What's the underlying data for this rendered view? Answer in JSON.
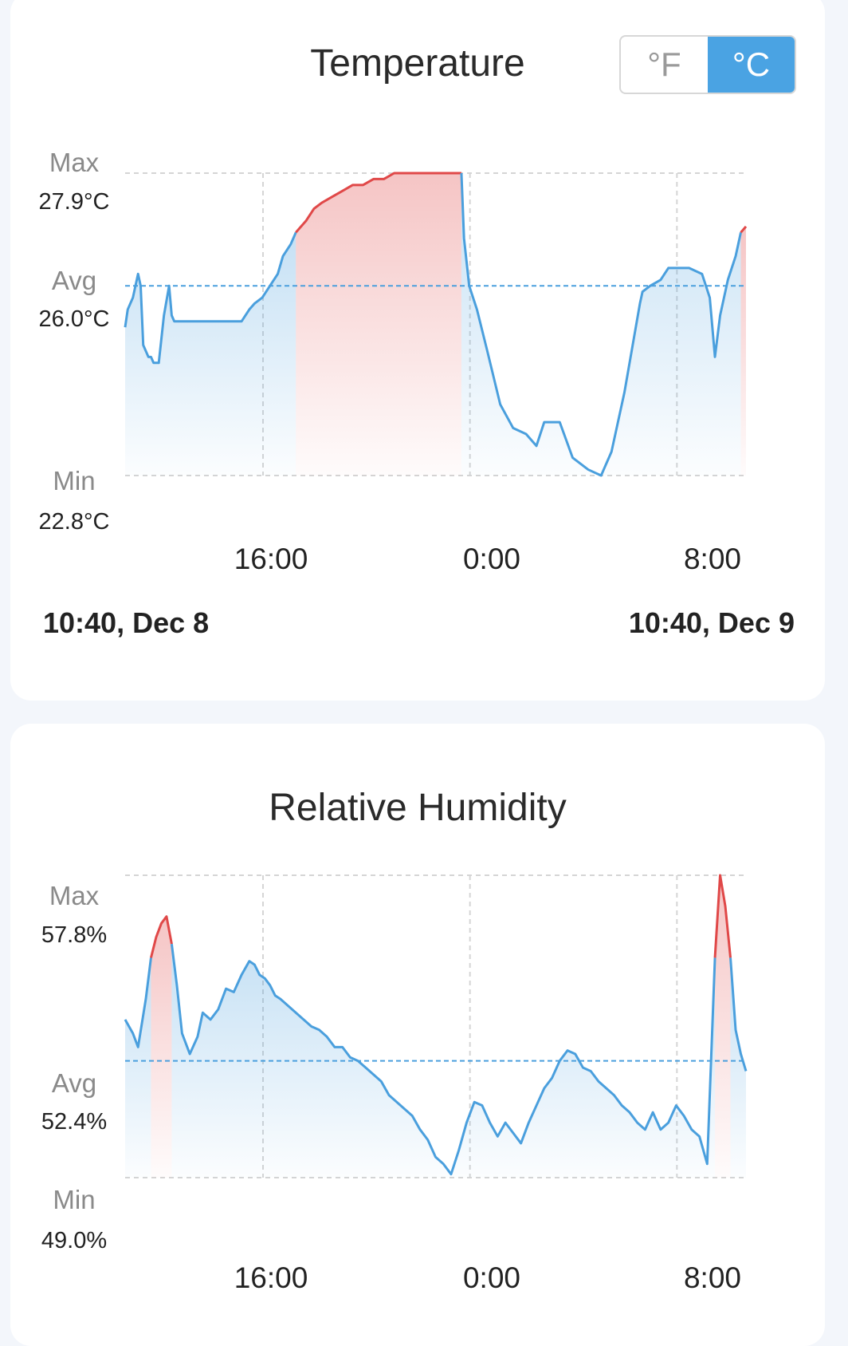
{
  "temperature": {
    "title": "Temperature",
    "units": [
      {
        "label": "°F",
        "active": false
      },
      {
        "label": "°C",
        "active": true
      }
    ],
    "max_label": "Max",
    "max_value": "27.9°C",
    "avg_label": "Avg",
    "avg_value": "26.0°C",
    "min_label": "Min",
    "min_value": "22.8°C",
    "x_ticks": [
      "16:00",
      "0:00",
      "8:00"
    ],
    "range_start": "10:40, Dec 8",
    "range_end": "10:40, Dec 9"
  },
  "humidity": {
    "title": "Relative Humidity",
    "max_label": "Max",
    "max_value": "57.8%",
    "avg_label": "Avg",
    "avg_value": "52.4%",
    "min_label": "Min",
    "min_value": "49.0%",
    "x_ticks": [
      "16:00",
      "0:00",
      "8:00"
    ]
  },
  "colors": {
    "line": "#4a9fdd",
    "high": "#e04848",
    "grid": "#d5d5d5",
    "accent": "#4aa3e3"
  },
  "chart_data": [
    {
      "type": "line",
      "title": "Temperature",
      "unit": "°C",
      "x_unit": "hours since 10:40 Dec 8",
      "x_range": [
        0,
        24
      ],
      "x_ticks": [
        {
          "label": "16:00",
          "x": 5.33
        },
        {
          "label": "0:00",
          "x": 13.33
        },
        {
          "label": "8:00",
          "x": 21.33
        }
      ],
      "ylim": [
        22.8,
        27.9
      ],
      "max": 27.9,
      "avg": 26.0,
      "min": 22.8,
      "highlight_threshold": 26.9,
      "x": [
        0,
        0.1,
        0.3,
        0.5,
        0.6,
        0.7,
        0.9,
        1.0,
        1.1,
        1.3,
        1.5,
        1.7,
        1.8,
        1.9,
        2.1,
        2.3,
        2.5,
        3.0,
        3.5,
        4.0,
        4.5,
        4.8,
        5.0,
        5.3,
        5.6,
        5.9,
        6.1,
        6.4,
        6.6,
        6.8,
        7.0,
        7.3,
        7.6,
        8.0,
        8.4,
        8.8,
        9.2,
        9.6,
        10.0,
        10.4,
        10.8,
        11.2,
        11.6,
        12.0,
        12.4,
        12.8,
        13.0,
        13.1,
        13.2,
        13.3,
        13.6,
        14.0,
        14.5,
        15.0,
        15.5,
        15.9,
        16.2,
        16.5,
        16.8,
        17.3,
        17.9,
        18.4,
        18.8,
        19.3,
        19.7,
        19.9,
        20.0,
        20.3,
        20.7,
        21.0,
        21.3,
        21.8,
        22.3,
        22.6,
        22.8,
        23.0,
        23.1,
        23.3,
        23.6,
        23.8,
        24.0
      ],
      "y": [
        25.3,
        25.6,
        25.8,
        26.2,
        26.0,
        25.0,
        24.8,
        24.8,
        24.7,
        24.7,
        25.5,
        26.0,
        25.5,
        25.4,
        25.4,
        25.4,
        25.4,
        25.4,
        25.4,
        25.4,
        25.4,
        25.6,
        25.7,
        25.8,
        26.0,
        26.2,
        26.5,
        26.7,
        26.9,
        27.0,
        27.1,
        27.3,
        27.4,
        27.5,
        27.6,
        27.7,
        27.7,
        27.8,
        27.8,
        27.9,
        27.9,
        27.9,
        27.9,
        27.9,
        27.9,
        27.9,
        27.9,
        26.8,
        26.4,
        26.0,
        25.6,
        24.9,
        24.0,
        23.6,
        23.5,
        23.3,
        23.7,
        23.7,
        23.7,
        23.1,
        22.9,
        22.8,
        23.2,
        24.2,
        25.2,
        25.7,
        25.9,
        26.0,
        26.1,
        26.3,
        26.3,
        26.3,
        26.2,
        25.8,
        24.8,
        25.5,
        25.7,
        26.1,
        26.5,
        26.9,
        27.0
      ],
      "series": [
        {
          "values": "y"
        }
      ]
    },
    {
      "type": "line",
      "title": "Relative Humidity",
      "unit": "%",
      "x_unit": "hours since 10:40 Dec 8",
      "x_range": [
        0,
        24
      ],
      "x_ticks": [
        {
          "label": "16:00",
          "x": 5.33
        },
        {
          "label": "0:00",
          "x": 13.33
        },
        {
          "label": "8:00",
          "x": 21.33
        }
      ],
      "ylim": [
        49.0,
        57.8
      ],
      "max": 57.8,
      "avg": 52.4,
      "min": 49.0,
      "highlight_threshold": 55.4,
      "x": [
        0,
        0.3,
        0.5,
        0.8,
        1.0,
        1.2,
        1.4,
        1.6,
        1.8,
        2.0,
        2.2,
        2.5,
        2.8,
        3.0,
        3.3,
        3.6,
        3.9,
        4.2,
        4.5,
        4.8,
        5.0,
        5.2,
        5.4,
        5.6,
        5.8,
        6.0,
        6.3,
        6.6,
        6.9,
        7.2,
        7.5,
        7.8,
        8.1,
        8.4,
        8.7,
        9.0,
        9.3,
        9.6,
        9.9,
        10.2,
        10.5,
        10.8,
        11.1,
        11.4,
        11.7,
        12.0,
        12.3,
        12.6,
        12.9,
        13.2,
        13.5,
        13.8,
        14.1,
        14.4,
        14.7,
        15.0,
        15.3,
        15.6,
        15.9,
        16.2,
        16.5,
        16.8,
        17.1,
        17.4,
        17.7,
        18.0,
        18.3,
        18.6,
        18.9,
        19.2,
        19.5,
        19.8,
        20.1,
        20.4,
        20.7,
        21.0,
        21.3,
        21.6,
        21.9,
        22.2,
        22.5,
        22.8,
        23.0,
        23.2,
        23.4,
        23.6,
        23.8,
        24.0
      ],
      "y": [
        53.6,
        53.2,
        52.8,
        54.2,
        55.4,
        56.0,
        56.4,
        56.6,
        55.8,
        54.6,
        53.2,
        52.6,
        53.1,
        53.8,
        53.6,
        53.9,
        54.5,
        54.4,
        54.9,
        55.3,
        55.2,
        54.9,
        54.8,
        54.6,
        54.3,
        54.2,
        54.0,
        53.8,
        53.6,
        53.4,
        53.3,
        53.1,
        52.8,
        52.8,
        52.5,
        52.4,
        52.2,
        52.0,
        51.8,
        51.4,
        51.2,
        51.0,
        50.8,
        50.4,
        50.1,
        49.6,
        49.4,
        49.1,
        49.8,
        50.6,
        51.2,
        51.1,
        50.6,
        50.2,
        50.6,
        50.3,
        50.0,
        50.6,
        51.1,
        51.6,
        51.9,
        52.4,
        52.7,
        52.6,
        52.2,
        52.1,
        51.8,
        51.6,
        51.4,
        51.1,
        50.9,
        50.6,
        50.4,
        50.9,
        50.4,
        50.6,
        51.1,
        50.8,
        50.4,
        50.2,
        49.4,
        55.4,
        57.8,
        56.9,
        55.4,
        53.3,
        52.6,
        52.1
      ],
      "series": [
        {
          "values": "y"
        }
      ]
    }
  ]
}
